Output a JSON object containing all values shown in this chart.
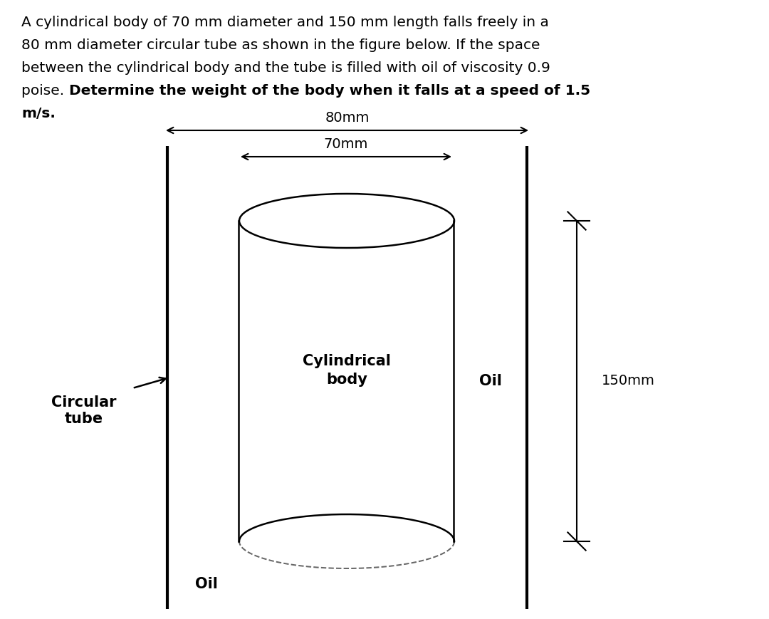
{
  "bg_color": "#ffffff",
  "text_color": "#000000",
  "label_80mm": "80mm",
  "label_70mm": "70mm",
  "label_150mm": "150mm",
  "label_cyl": "Cylindrical\nbody",
  "label_oil_right": "Oil",
  "label_oil_bottom": "Oil",
  "label_circular": "Circular\ntube",
  "normal_text": "A cylindrical body of 70 mm diameter and 150 mm length falls freely in a\n80 mm diameter circular tube as shown in the figure below. If the space\nbetween the cylindrical body and the tube is filled with oil of viscosity 0.9\npoise. ",
  "bold_text": "Determine the weight of the body when it falls at a speed of 1.5\nm/s.",
  "fig_width": 10.8,
  "fig_height": 8.69,
  "dpi": 100
}
